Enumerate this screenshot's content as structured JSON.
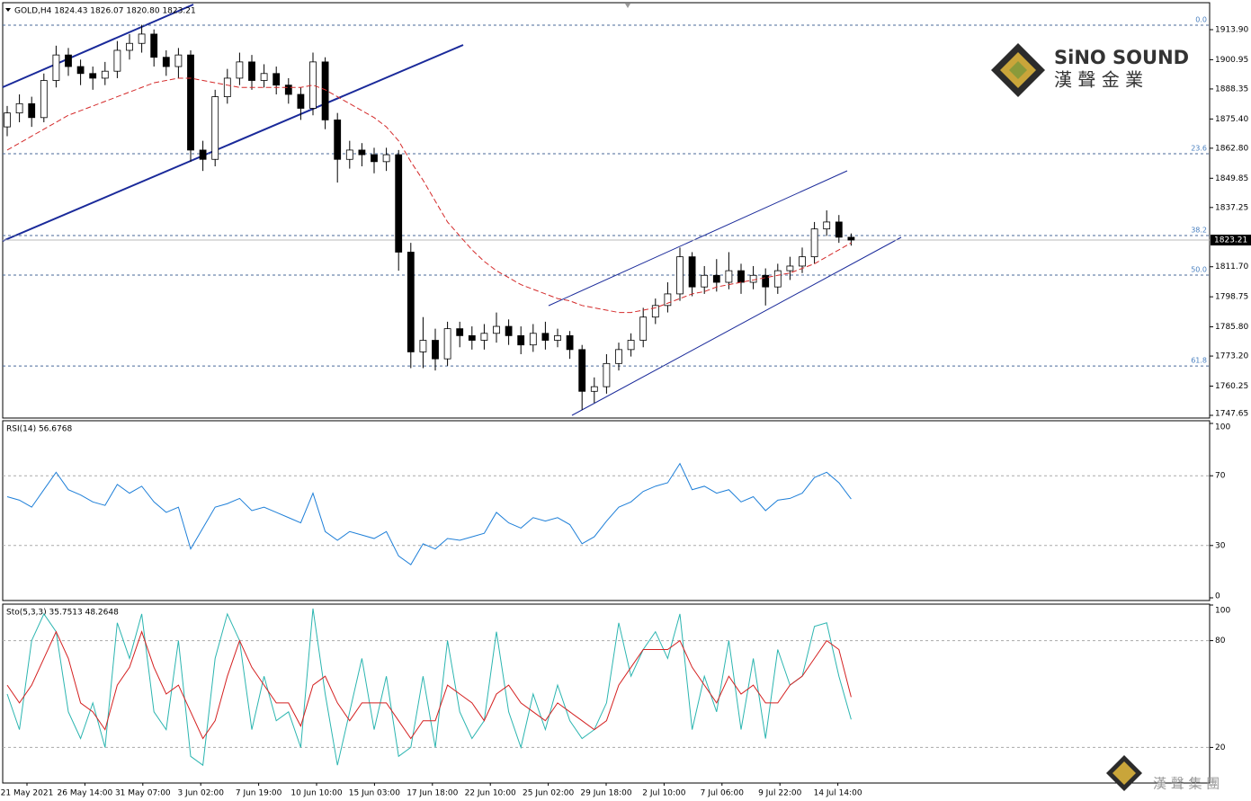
{
  "chart_data": [
    {
      "type": "candlestick",
      "title": "GOLD,H4  1824.43 1826.07 1820.80 1823.21",
      "open": [
        1872,
        1878,
        1882,
        1876,
        1892,
        1903,
        1898,
        1895,
        1893,
        1896,
        1905,
        1908,
        1912,
        1902,
        1898,
        1903,
        1862,
        1858,
        1885,
        1893,
        1900,
        1892,
        1895,
        1890,
        1886,
        1880,
        1900,
        1875,
        1858,
        1862,
        1860,
        1857,
        1860,
        1818,
        1775,
        1780,
        1772,
        1785,
        1782,
        1780,
        1783,
        1786,
        1782,
        1778,
        1783,
        1780,
        1782,
        1776,
        1758,
        1760,
        1770,
        1776,
        1780,
        1790,
        1795,
        1800,
        1816,
        1803,
        1808,
        1805,
        1810,
        1805,
        1808,
        1803,
        1810,
        1812,
        1816,
        1828,
        1831,
        1824.43
      ],
      "high": [
        1881,
        1886,
        1885,
        1895,
        1907,
        1906,
        1901,
        1898,
        1900,
        1909,
        1912,
        1916,
        1914,
        1905,
        1906,
        1905,
        1866,
        1888,
        1897,
        1904,
        1903,
        1899,
        1898,
        1893,
        1889,
        1904,
        1902,
        1878,
        1866,
        1865,
        1863,
        1863,
        1862,
        1822,
        1790,
        1785,
        1788,
        1788,
        1786,
        1787,
        1792,
        1789,
        1786,
        1787,
        1788,
        1785,
        1784,
        1778,
        1764,
        1774,
        1779,
        1783,
        1794,
        1798,
        1805,
        1820,
        1818,
        1812,
        1815,
        1818,
        1813,
        1812,
        1811,
        1813,
        1816,
        1820,
        1831,
        1836,
        1834,
        1826.07
      ],
      "low": [
        1868,
        1874,
        1872,
        1874,
        1889,
        1894,
        1890,
        1888,
        1890,
        1893,
        1901,
        1904,
        1898,
        1894,
        1893,
        1857,
        1853,
        1855,
        1882,
        1890,
        1888,
        1889,
        1886,
        1882,
        1875,
        1877,
        1871,
        1848,
        1854,
        1855,
        1852,
        1853,
        1810,
        1768,
        1768,
        1767,
        1769,
        1777,
        1776,
        1776,
        1779,
        1778,
        1774,
        1775,
        1776,
        1777,
        1772,
        1750,
        1753,
        1757,
        1767,
        1773,
        1777,
        1787,
        1792,
        1797,
        1799,
        1800,
        1801,
        1802,
        1800,
        1802,
        1795,
        1800,
        1806,
        1809,
        1813,
        1825,
        1822,
        1820.8
      ],
      "close": [
        1878,
        1882,
        1876,
        1892,
        1903,
        1898,
        1895,
        1893,
        1896,
        1905,
        1908,
        1912,
        1902,
        1898,
        1903,
        1862,
        1858,
        1885,
        1893,
        1900,
        1892,
        1895,
        1890,
        1886,
        1880,
        1900,
        1875,
        1858,
        1862,
        1860,
        1857,
        1860,
        1818,
        1775,
        1780,
        1772,
        1785,
        1782,
        1780,
        1783,
        1786,
        1782,
        1778,
        1783,
        1780,
        1782,
        1776,
        1758,
        1760,
        1770,
        1776,
        1780,
        1790,
        1795,
        1800,
        1816,
        1803,
        1808,
        1805,
        1810,
        1805,
        1808,
        1803,
        1810,
        1812,
        1816,
        1828,
        1831,
        1824.43,
        1823.21
      ],
      "ma_values": [
        1862,
        1865,
        1868,
        1871,
        1874,
        1877,
        1879,
        1881,
        1883,
        1885,
        1887,
        1889,
        1891,
        1892,
        1893,
        1893,
        1892,
        1891,
        1890,
        1889,
        1889,
        1889,
        1889,
        1889,
        1889,
        1890,
        1888,
        1885,
        1882,
        1879,
        1876,
        1872,
        1866,
        1857,
        1849,
        1840,
        1831,
        1825,
        1819,
        1814,
        1810,
        1807,
        1804,
        1802,
        1800,
        1798,
        1797,
        1795,
        1794,
        1793,
        1792,
        1792,
        1793,
        1794,
        1796,
        1798,
        1800,
        1801,
        1803,
        1804,
        1805,
        1806,
        1807,
        1808,
        1809,
        1811,
        1813,
        1816,
        1819,
        1822
      ],
      "ma_color": "#d42a2a",
      "ylim": [
        1746.49,
        1925.53
      ],
      "yticks": [
        {
          "value": 1913.9,
          "label": "1913.90"
        },
        {
          "value": 1900.95,
          "label": "1900.95"
        },
        {
          "value": 1888.35,
          "label": "1888.35"
        },
        {
          "value": 1875.4,
          "label": "1875.40"
        },
        {
          "value": 1862.8,
          "label": "1862.80"
        },
        {
          "value": 1849.85,
          "label": "1849.85"
        },
        {
          "value": 1837.25,
          "label": "1837.25"
        },
        {
          "value": 1811.7,
          "label": "1811.70"
        },
        {
          "value": 1798.75,
          "label": "1798.75"
        },
        {
          "value": 1785.8,
          "label": "1785.80"
        },
        {
          "value": 1773.2,
          "label": "1773.20"
        },
        {
          "value": 1760.25,
          "label": "1760.25"
        },
        {
          "value": 1747.65,
          "label": "1747.65"
        }
      ],
      "levels": [
        {
          "value": 1915.84,
          "label": "0.0"
        },
        {
          "value": 1860.41,
          "label": "23.6"
        },
        {
          "value": 1825.14,
          "label": "38.2"
        },
        {
          "value": 1808.09,
          "label": "50.0"
        },
        {
          "value": 1768.94,
          "label": "61.8"
        }
      ],
      "last_price": 1823.21,
      "grid": false
    },
    {
      "type": "line",
      "title": "RSI(14) 56.6768",
      "series": [
        {
          "color": "#1e7fd8",
          "values": [
            58,
            56,
            52,
            62,
            72,
            62,
            59,
            55,
            53,
            65,
            60,
            64,
            55,
            49,
            52,
            28,
            40,
            52,
            54,
            57,
            50,
            52,
            49,
            46,
            43,
            60,
            38,
            33,
            38,
            36,
            34,
            38,
            24,
            19,
            31,
            28,
            34,
            33,
            35,
            37,
            49,
            43,
            40,
            46,
            44,
            46,
            42,
            31,
            35,
            44,
            52,
            55,
            61,
            64,
            66,
            77,
            62,
            64,
            60,
            62,
            55,
            58,
            50,
            56,
            57,
            60,
            69,
            72,
            66,
            56.6768
          ]
        }
      ],
      "ylim": [
        0,
        100
      ],
      "yticks": [
        0,
        30,
        70,
        100
      ],
      "grid": true
    },
    {
      "type": "line",
      "title": "Sto(5,3,3) 35.7513 48.2648",
      "series": [
        {
          "color": "#2bb5b0",
          "values": [
            50,
            30,
            80,
            95,
            85,
            40,
            25,
            45,
            20,
            90,
            70,
            95,
            40,
            30,
            80,
            15,
            10,
            70,
            95,
            80,
            30,
            60,
            35,
            40,
            20,
            98,
            50,
            10,
            40,
            70,
            30,
            60,
            15,
            20,
            60,
            20,
            80,
            40,
            25,
            35,
            85,
            40,
            20,
            50,
            30,
            55,
            35,
            25,
            30,
            45,
            90,
            60,
            75,
            85,
            70,
            95,
            30,
            60,
            40,
            80,
            30,
            70,
            25,
            75,
            55,
            60,
            88,
            90,
            60,
            35.7513
          ]
        },
        {
          "color": "#d42020",
          "values": [
            55,
            45,
            55,
            70,
            85,
            70,
            45,
            40,
            30,
            55,
            65,
            85,
            65,
            50,
            55,
            40,
            25,
            35,
            60,
            80,
            65,
            55,
            45,
            45,
            32,
            55,
            60,
            45,
            35,
            45,
            45,
            45,
            35,
            25,
            35,
            35,
            55,
            50,
            45,
            35,
            50,
            55,
            45,
            40,
            35,
            45,
            40,
            35,
            30,
            35,
            55,
            65,
            75,
            75,
            75,
            80,
            65,
            55,
            45,
            60,
            50,
            55,
            45,
            45,
            55,
            60,
            70,
            80,
            75,
            48.2648
          ]
        }
      ],
      "ylim": [
        0,
        100
      ],
      "yticks": [
        20,
        80,
        100
      ],
      "grid": true,
      "xtick_labels": [
        "21 May 2021",
        "26 May 14:00",
        "31 May 07:00",
        "3 Jun 02:00",
        "7 Jun 19:00",
        "10 Jun 10:00",
        "15 Jun 03:00",
        "17 Jun 18:00",
        "22 Jun 10:00",
        "25 Jun 02:00",
        "29 Jun 18:00",
        "2 Jul 10:00",
        "7 Jul 06:00",
        "9 Jul 22:00",
        "14 Jul 14:00"
      ]
    }
  ],
  "logo": {
    "name": "SiNO SOUND",
    "chinese": "漢 聲 金 業"
  },
  "watermark": "漢 聲 集 團"
}
